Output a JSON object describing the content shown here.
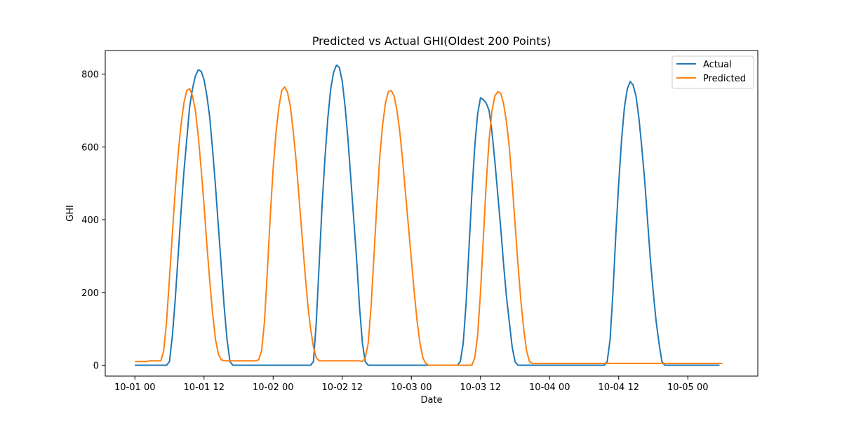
{
  "chart_data": {
    "type": "line",
    "title": "Predicted vs Actual GHI(Oldest 200 Points)",
    "xlabel": "Date",
    "ylabel": "GHI",
    "x_axis": {
      "kind": "datetime",
      "start": "2024-10-01 00:00",
      "end": "2024-10-05 07:00",
      "step_minutes": 30,
      "ticks": [
        "10-01 00",
        "10-01 12",
        "10-02 00",
        "10-02 12",
        "10-03 00",
        "10-03 12",
        "10-04 00",
        "10-04 12",
        "10-05 00"
      ]
    },
    "ylim": [
      -30,
      865
    ],
    "yticks": [
      0,
      200,
      400,
      600,
      800
    ],
    "grid": false,
    "legend": {
      "placement": "upper right"
    },
    "series": [
      {
        "name": "Actual",
        "color": "#1f77b4",
        "values": [
          0,
          0,
          0,
          0,
          0,
          0,
          0,
          0,
          0,
          0,
          0,
          0,
          10,
          80,
          180,
          300,
          420,
          530,
          620,
          710,
          760,
          795,
          812,
          808,
          785,
          740,
          680,
          590,
          490,
          380,
          270,
          160,
          70,
          10,
          0,
          0,
          0,
          0,
          0,
          0,
          0,
          0,
          0,
          0,
          0,
          0,
          0,
          0,
          0,
          0,
          0,
          0,
          0,
          0,
          0,
          0,
          0,
          0,
          0,
          0,
          0,
          0,
          10,
          120,
          280,
          440,
          570,
          680,
          760,
          805,
          825,
          818,
          780,
          710,
          620,
          510,
          400,
          290,
          160,
          60,
          10,
          0,
          0,
          0,
          0,
          0,
          0,
          0,
          0,
          0,
          0,
          0,
          0,
          0,
          0,
          0,
          0,
          0,
          0,
          0,
          0,
          0,
          0,
          0,
          0,
          0,
          0,
          0,
          0,
          0,
          0,
          0,
          0,
          10,
          60,
          170,
          320,
          470,
          600,
          690,
          735,
          730,
          720,
          700,
          640,
          560,
          470,
          380,
          280,
          190,
          120,
          50,
          10,
          0,
          0,
          0,
          0,
          0,
          0,
          0,
          0,
          0,
          0,
          0,
          0,
          0,
          0,
          0,
          0,
          0,
          0,
          0,
          0,
          0,
          0,
          0,
          0,
          0,
          0,
          0,
          0,
          0,
          0,
          0,
          10,
          70,
          200,
          360,
          500,
          620,
          710,
          760,
          780,
          770,
          740,
          680,
          600,
          510,
          400,
          290,
          200,
          120,
          60,
          10,
          0,
          0,
          0,
          0,
          0,
          0,
          0,
          0,
          0,
          0,
          0,
          0,
          0,
          0,
          0,
          0,
          0,
          0,
          0,
          0
        ],
        "x_start_index": 0
      },
      {
        "name": "Predicted",
        "color": "#ff7f0e",
        "values": [
          10,
          10,
          10,
          10,
          10,
          12,
          12,
          12,
          12,
          12,
          40,
          120,
          240,
          360,
          480,
          580,
          660,
          720,
          755,
          760,
          740,
          700,
          630,
          540,
          440,
          330,
          230,
          140,
          70,
          30,
          15,
          12,
          12,
          12,
          12,
          12,
          12,
          12,
          12,
          12,
          12,
          12,
          12,
          15,
          40,
          120,
          260,
          410,
          540,
          640,
          710,
          755,
          765,
          750,
          710,
          640,
          560,
          460,
          360,
          260,
          170,
          100,
          50,
          20,
          12,
          12,
          12,
          12,
          12,
          12,
          12,
          12,
          12,
          12,
          12,
          12,
          12,
          12,
          12,
          10,
          20,
          60,
          160,
          300,
          440,
          570,
          660,
          720,
          752,
          755,
          740,
          700,
          640,
          560,
          470,
          380,
          290,
          200,
          120,
          60,
          20,
          5,
          0,
          0,
          0,
          0,
          0,
          0,
          0,
          0,
          0,
          0,
          0,
          0,
          0,
          0,
          0,
          0,
          20,
          80,
          200,
          350,
          500,
          620,
          700,
          740,
          752,
          748,
          720,
          670,
          600,
          500,
          390,
          280,
          180,
          100,
          40,
          10,
          5,
          5,
          5,
          5,
          5,
          5,
          5,
          5,
          5,
          5,
          5,
          5,
          5,
          5,
          5,
          5,
          5,
          5,
          5,
          5,
          5,
          5,
          5,
          5,
          5,
          5,
          5,
          5,
          5,
          5,
          5,
          5,
          5,
          5,
          5,
          5,
          5,
          5,
          5,
          5,
          5,
          5,
          5,
          5,
          5,
          5,
          5,
          5,
          5,
          5,
          5,
          5,
          5,
          5,
          5,
          5,
          5,
          5,
          5,
          5,
          5,
          5,
          5,
          5,
          5,
          5,
          5
        ],
        "x_start_index": 0
      }
    ]
  }
}
